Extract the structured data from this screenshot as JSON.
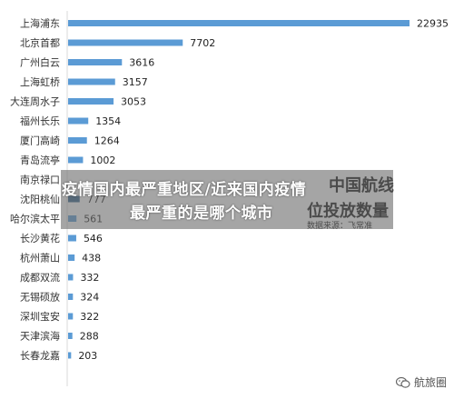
{
  "headline": {
    "line1": "疫情国内最严重地区/近来国内疫情",
    "line2": "最严重的是哪个城市"
  },
  "background_text": {
    "title_line1": "中国航线",
    "title_line2": "位投放数量",
    "source": "数据来源：飞常准"
  },
  "watermark": {
    "text": "航旅圈",
    "icon": "wechat-icon"
  },
  "colors": {
    "bar": "#5b9bd5",
    "bar_dark": "#2e5f8a",
    "axis": "#d9d9d9"
  },
  "chart_data": {
    "type": "bar",
    "orientation": "horizontal",
    "categories": [
      "上海浦东",
      "北京首都",
      "广州白云",
      "上海虹桥",
      "大连周水子",
      "福州长乐",
      "厦门高崎",
      "青岛流亭",
      "南京禄口",
      "沈阳桃仙",
      "哈尔滨太平",
      "长沙黄花",
      "杭州萧山",
      "成都双流",
      "无锡硕放",
      "深圳宝安",
      "天津滨海",
      "长春龙嘉"
    ],
    "values": [
      22935,
      7702,
      3616,
      3157,
      3053,
      1354,
      1264,
      1002,
      null,
      777,
      561,
      546,
      438,
      332,
      324,
      322,
      288,
      203
    ],
    "value_labels": [
      "22935",
      "7702",
      "3616",
      "3157",
      "3053",
      "1354",
      "1264",
      "1002",
      "",
      "777",
      "561",
      "546",
      "438",
      "332",
      "324",
      "322",
      "288",
      "203"
    ],
    "xlim": [
      0,
      25000
    ],
    "grid": false,
    "legend": "none"
  }
}
